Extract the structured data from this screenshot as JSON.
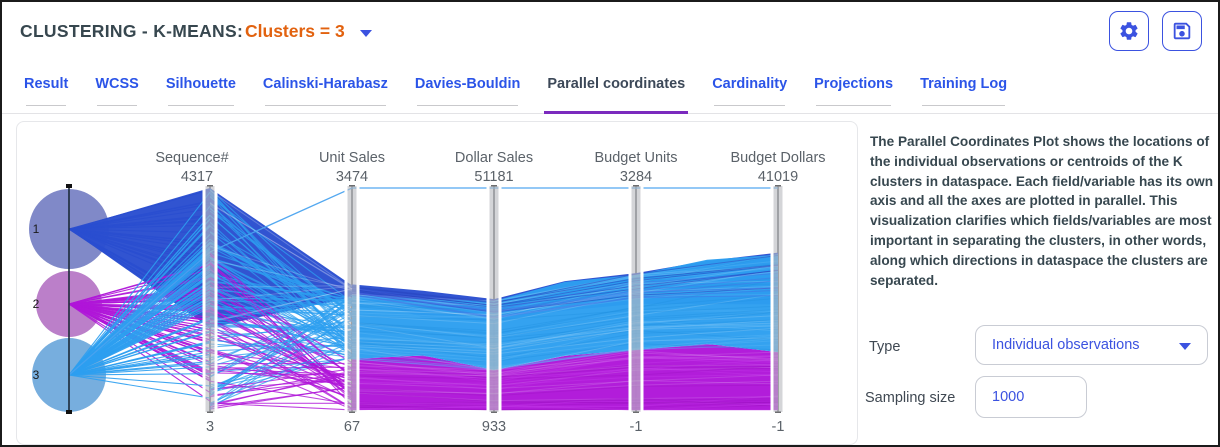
{
  "header": {
    "title": "CLUSTERING - K-MEANS:",
    "clusters_selector": "Clusters = 3"
  },
  "toolbar": {
    "settings_icon": "gear-icon",
    "save_icon": "save-icon"
  },
  "tabs": {
    "items": [
      "Result",
      "WCSS",
      "Silhouette",
      "Calinski-Harabasz",
      "Davies-Bouldin",
      "Parallel coordinates",
      "Cardinality",
      "Projections",
      "Training Log"
    ],
    "active": "Parallel coordinates"
  },
  "side_panel": {
    "description": "The Parallel Coordinates Plot shows the locations of the individual observations or centroids of the K clusters in dataspace. Each field/variable has its own axis and all the axes are plotted in parallel. This visualization clarifies which fields/variables are most important in separating the clusters, in other words, along which directions in dataspace the clusters are separated.",
    "type_label": "Type",
    "type_value": "Individual observations",
    "sampling_label": "Sampling size",
    "sampling_value": "1000"
  },
  "colors": {
    "accent_blue": "#3b52e0",
    "orange": "#e2620f",
    "header_text": "#37474f",
    "axis_label_gray": "#5b6269",
    "active_tab_underline": "#7b2abe"
  },
  "chart_data": {
    "type": "parallel-coordinates",
    "title": "Parallel coordinates of K-means clusters (K=3)",
    "axes": [
      {
        "name": "Sequence#",
        "min": 3,
        "max": 4317
      },
      {
        "name": "Unit Sales",
        "min": 67,
        "max": 3474
      },
      {
        "name": "Dollar Sales",
        "min": 933,
        "max": 51181
      },
      {
        "name": "Budget Units",
        "min": -1,
        "max": 3284
      },
      {
        "name": "Budget Dollars",
        "min": -1,
        "max": 41019
      }
    ],
    "clusters": [
      {
        "label": "1",
        "line_color": "#2a4ed0",
        "node_color": "#8089c8",
        "bands": {
          "Sequence#": [
            1600,
            4317
          ],
          "Unit Sales": [
            1800,
            1980
          ],
          "Dollar Sales": [
            21000,
            25800
          ],
          "Budget Units": [
            1570,
            2010
          ],
          "Budget Dollars": [
            19500,
            28900
          ]
        }
      },
      {
        "label": "2",
        "line_color": "#b016d9",
        "node_color": "#bb7fc9",
        "bands": {
          "Sequence#": [
            3,
            3070
          ],
          "Unit Sales": [
            67,
            850
          ],
          "Dollar Sales": [
            933,
            10000
          ],
          "Budget Units": [
            -1,
            890
          ],
          "Budget Dollars": [
            -1,
            10700
          ]
        }
      },
      {
        "label": "3",
        "line_color": "#2d9ff0",
        "node_color": "#77aede",
        "bands": {
          "Sequence#": [
            3,
            4317
          ],
          "Unit Sales": [
            850,
            1840
          ],
          "Dollar Sales": [
            10000,
            25600
          ],
          "Budget Units": [
            890,
            2000
          ],
          "Budget Dollars": [
            10700,
            28700
          ]
        }
      }
    ],
    "outlier_observation": {
      "Sequence#": 3074,
      "Unit Sales": 3474,
      "Dollar Sales": 51181,
      "Budget Units": 3284,
      "Budget Dollars": 41019
    },
    "legend_position": "none",
    "grid": false
  }
}
